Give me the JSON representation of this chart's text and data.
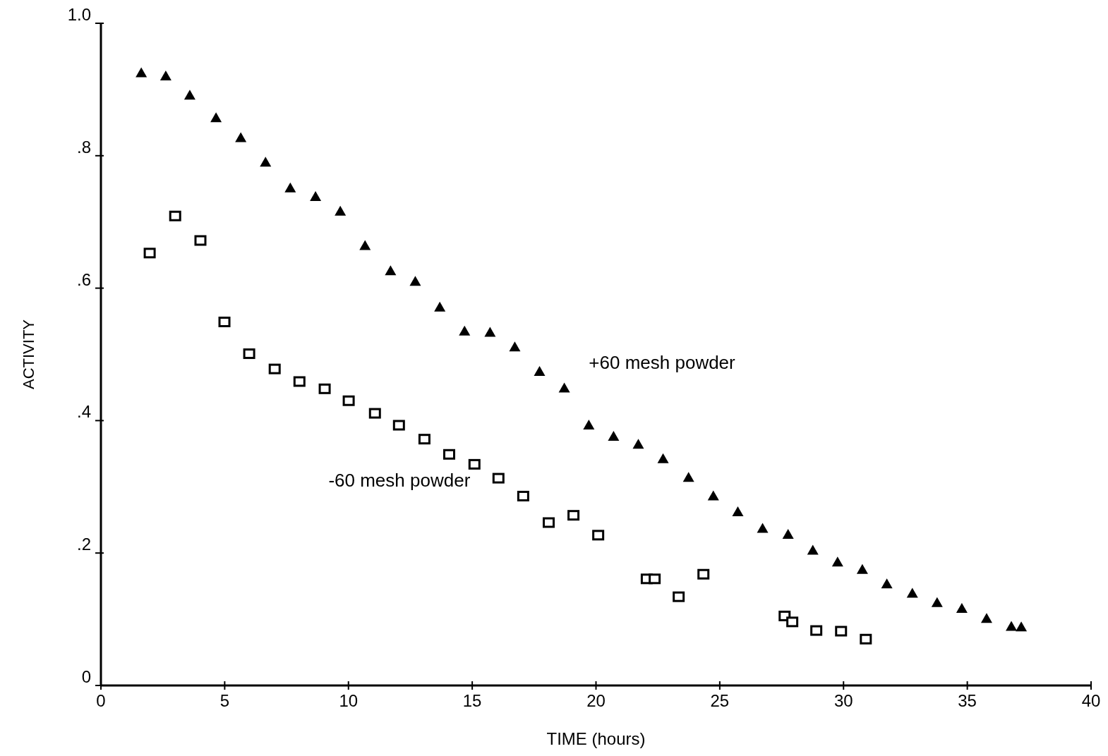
{
  "chart_data": {
    "type": "scatter",
    "xlabel": "TIME (hours)",
    "ylabel": "ACTIVITY",
    "xlim": [
      0,
      40
    ],
    "xticks": [
      0,
      5,
      10,
      15,
      20,
      25,
      30,
      35,
      40
    ],
    "ylim": [
      0,
      1
    ],
    "yticks": [
      {
        "value": 0,
        "label": "0"
      },
      {
        "value": 0.2,
        "label": ".2"
      },
      {
        "value": 0.4,
        "label": ".4"
      },
      {
        "value": 0.6,
        "label": ".6"
      },
      {
        "value": 0.8,
        "label": ".8"
      },
      {
        "value": 1,
        "label": "1.0"
      }
    ],
    "grid": false,
    "series": [
      {
        "name": "+60 mesh powder",
        "color": "#000000",
        "marker": "triangle",
        "x": [
          1.63,
          2.62,
          3.59,
          4.65,
          5.65,
          6.65,
          7.65,
          8.67,
          9.67,
          10.67,
          11.7,
          12.7,
          13.69,
          14.69,
          15.72,
          16.72,
          17.72,
          18.72,
          19.71,
          20.71,
          21.71,
          22.71,
          23.74,
          24.74,
          25.73,
          26.73,
          27.76,
          28.76,
          29.76,
          30.76,
          31.75,
          32.78,
          33.78,
          34.78,
          35.78,
          36.78,
          37.18
        ],
        "values": [
          0.925,
          0.92,
          0.891,
          0.857,
          0.827,
          0.79,
          0.751,
          0.738,
          0.716,
          0.664,
          0.626,
          0.61,
          0.571,
          0.535,
          0.533,
          0.511,
          0.474,
          0.449,
          0.393,
          0.376,
          0.364,
          0.342,
          0.314,
          0.286,
          0.262,
          0.237,
          0.228,
          0.204,
          0.186,
          0.175,
          0.153,
          0.139,
          0.125,
          0.116,
          0.101,
          0.089,
          0.088
        ]
      },
      {
        "name": "-60 mesh powder",
        "color": "#000000",
        "marker": "square",
        "x": [
          1.97,
          3.0,
          4.02,
          4.99,
          5.99,
          7.02,
          8.02,
          9.04,
          10.01,
          11.07,
          12.04,
          13.07,
          14.07,
          15.09,
          16.06,
          17.06,
          18.09,
          19.09,
          20.09,
          22.05,
          22.37,
          23.34,
          24.34,
          27.62,
          27.93,
          28.9,
          29.9,
          30.9
        ],
        "values": [
          0.653,
          0.709,
          0.672,
          0.549,
          0.501,
          0.478,
          0.459,
          0.448,
          0.43,
          0.411,
          0.393,
          0.372,
          0.349,
          0.334,
          0.313,
          0.286,
          0.246,
          0.257,
          0.227,
          0.161,
          0.161,
          0.134,
          0.168,
          0.105,
          0.096,
          0.083,
          0.082,
          0.07
        ]
      }
    ]
  }
}
